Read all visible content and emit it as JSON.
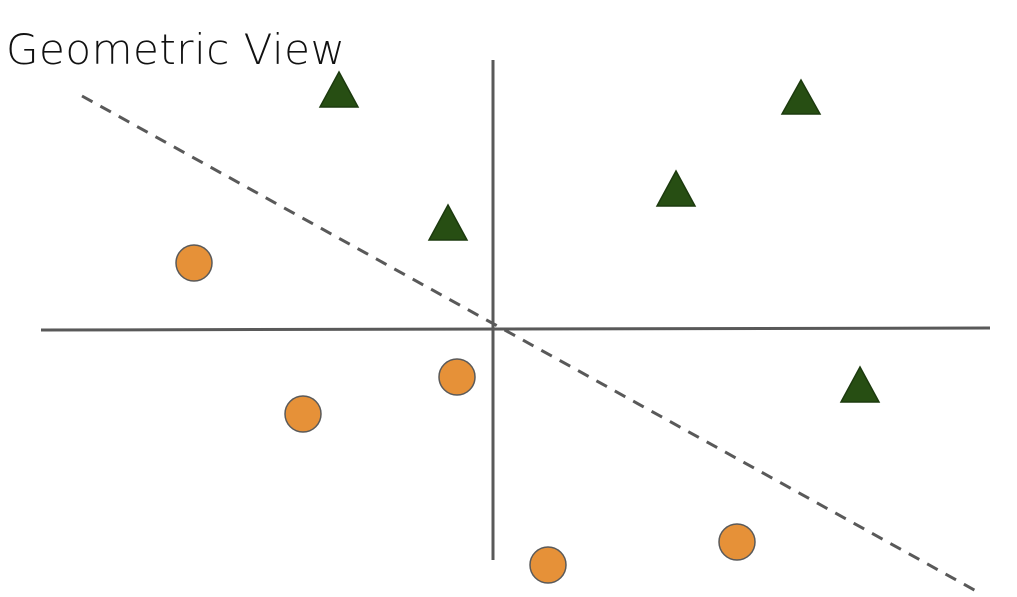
{
  "title": "Geometric View",
  "colors": {
    "axis": "#595959",
    "boundary": "#595959",
    "triangle_fill": "#274e13",
    "triangle_stroke": "#1c3a0e",
    "circle_fill": "#e69138",
    "circle_stroke": "#5a5a5a"
  },
  "shapes": {
    "triangle_class": "triangle",
    "circle_class": "circle"
  }
}
